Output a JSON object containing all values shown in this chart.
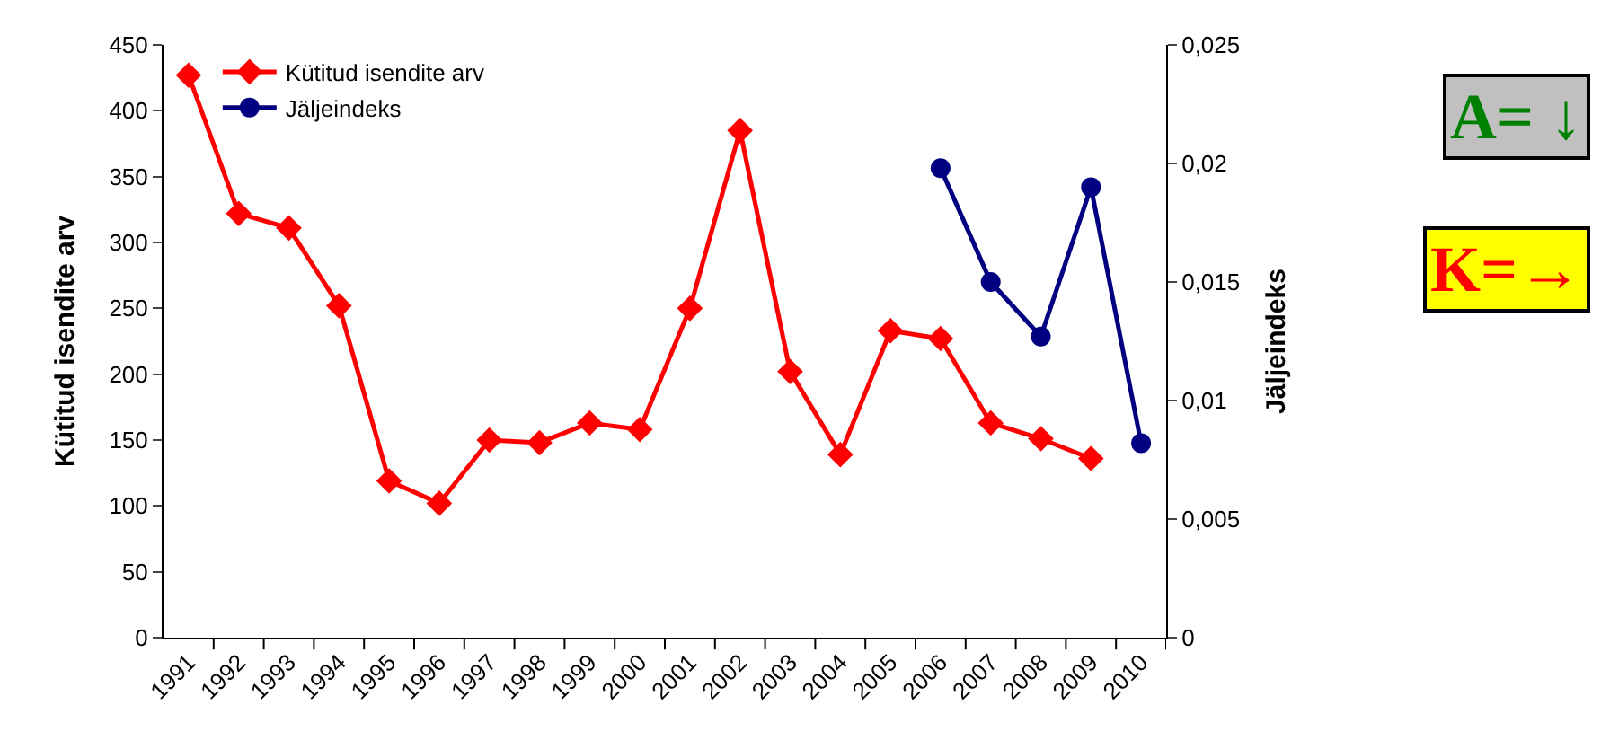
{
  "chart_data": {
    "type": "line",
    "ylabel": "Kütitud isendite arv",
    "y2label": "Jäljeindeks",
    "categories": [
      "1991",
      "1992",
      "1993",
      "1994",
      "1995",
      "1996",
      "1997",
      "1998",
      "1999",
      "2000",
      "2001",
      "2002",
      "2003",
      "2004",
      "2005",
      "2006",
      "2007",
      "2008",
      "2009",
      "2010"
    ],
    "series": [
      {
        "name": "Kütitud isendite arv",
        "color": "#ff0000",
        "marker": "diamond",
        "values": [
          427,
          322,
          311,
          252,
          119,
          102,
          150,
          148,
          163,
          158,
          250,
          385,
          202,
          139,
          233,
          227,
          163,
          151,
          136,
          null
        ]
      },
      {
        "name": "Jäljeindeks",
        "color": "#000080",
        "marker": "circle",
        "axis": "y2",
        "values": [
          null,
          null,
          null,
          null,
          null,
          null,
          null,
          null,
          null,
          null,
          null,
          null,
          null,
          null,
          null,
          0.0198,
          0.015,
          0.0127,
          0.019,
          0.0082
        ]
      }
    ],
    "ylim": [
      0,
      450
    ],
    "yticks": [
      0,
      50,
      100,
      150,
      200,
      250,
      300,
      350,
      400,
      450
    ],
    "y2lim": [
      0,
      0.025
    ],
    "y2ticks": [
      {
        "value": 0,
        "label": "0"
      },
      {
        "value": 0.005,
        "label": "0,005"
      },
      {
        "value": 0.01,
        "label": "0,01"
      },
      {
        "value": 0.015,
        "label": "0,015"
      },
      {
        "value": 0.02,
        "label": "0,02"
      },
      {
        "value": 0.025,
        "label": "0,025"
      }
    ],
    "legend": "top left",
    "line_style": "solid",
    "annotations": [
      "A= ↓",
      "K=→"
    ]
  }
}
